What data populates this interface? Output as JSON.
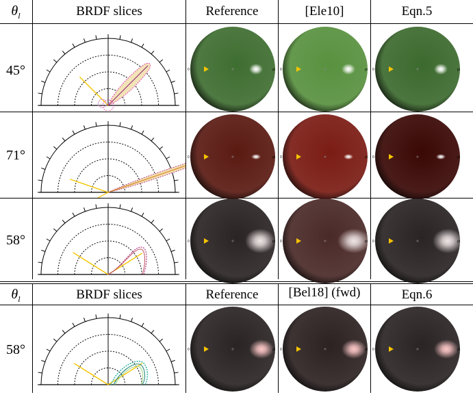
{
  "table1": {
    "header": {
      "theta": "θ",
      "theta_sub": "l",
      "slices": "BRDF slices",
      "c1": "Reference",
      "c2": "[Ele10]",
      "c3": "Eqn.5"
    },
    "rows": [
      {
        "angle": "45°",
        "base": "#3f6e31",
        "spec": "#ffffff",
        "tint": [
          "#3f6e31",
          "#58913f",
          "#3c6a2e"
        ],
        "lobe": "#d4a",
        "lobe2": "#e8d8a0"
      },
      {
        "angle": "71°",
        "base": "#3a0805",
        "spec": "#ffffff",
        "tint": [
          "#5a1a12",
          "#7a1c14",
          "#3a0805"
        ],
        "lobe": "#b3408a",
        "lobe2": "#e0a060"
      },
      {
        "angle": "58°",
        "base": "#2a2020",
        "spec": "#f0e6e6",
        "tint": [
          "#2b2424",
          "#4a2a28",
          "#2a2424"
        ],
        "lobe": "#b3408a",
        "lobe2": "#e0a060"
      }
    ]
  },
  "table2": {
    "header": {
      "theta": "θ",
      "theta_sub": "l",
      "slices": "BRDF slices",
      "c1": "Reference",
      "c2": "[Bel18] (fwd)",
      "c3": "Eqn.6"
    },
    "rows": [
      {
        "angle": "58°",
        "base": "#2a2020",
        "spec": "#ffc8c8",
        "tint": [
          "#2b2424",
          "#2d2222",
          "#2b2424"
        ],
        "lobe": "#3ab5a5",
        "lobe2": "#9ad07a"
      }
    ]
  },
  "sphere_labels": {
    "left": "0",
    "right": "pi"
  },
  "colors": {
    "light": "#f5c400",
    "grid": "#000000"
  }
}
